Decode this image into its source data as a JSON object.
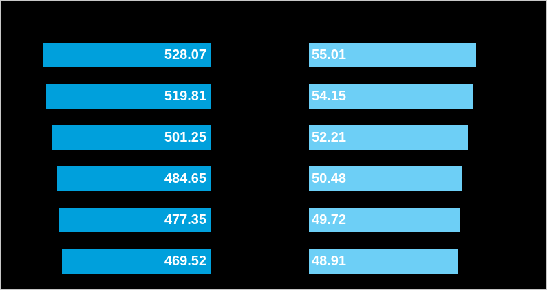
{
  "canvas": {
    "background_color": "#000000",
    "frame_border_color": "#c8c8c8"
  },
  "chart_data": {
    "type": "bar",
    "orientation": "horizontal",
    "grid": false,
    "legend": "none",
    "axes_visible": false,
    "category_labels_visible": false,
    "rows": 6,
    "series": [
      {
        "id": "left-bars",
        "color": "#00A0DC",
        "anchor": "right",
        "label_color": "#FFFFFF",
        "values": [
          528.07,
          519.81,
          501.25,
          484.65,
          477.35,
          469.52
        ],
        "labels": [
          "528.07",
          "519.81",
          "501.25",
          "484.65",
          "477.35",
          "469.52"
        ],
        "axis_min": 0
      },
      {
        "id": "right-bars",
        "color": "#6DCFF6",
        "anchor": "left",
        "label_color": "#FFFFFF",
        "values": [
          55.01,
          54.15,
          52.21,
          50.48,
          49.72,
          48.91
        ],
        "labels": [
          "55.01",
          "54.15",
          "52.21",
          "50.48",
          "49.72",
          "48.91"
        ],
        "axis_min": 0
      }
    ]
  }
}
